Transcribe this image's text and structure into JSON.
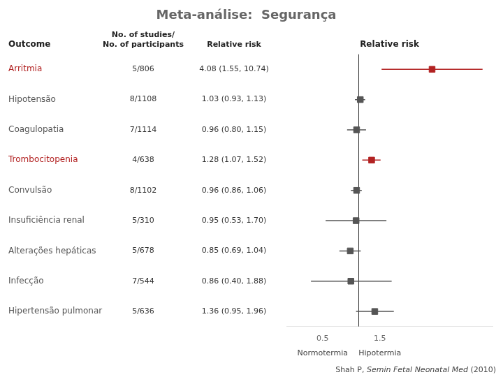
{
  "chart_data": {
    "type": "forest",
    "title": "Meta-análise:  Segurança",
    "category_label": "Outcome",
    "categories": [
      "Arritmia",
      "Hipotensão",
      "Coagulopatia",
      "Trombocitopenia",
      "Convulsão",
      "Insuficiência renal",
      "Alterações hepáticas",
      "Infecção",
      "Hipertensão pulmonar"
    ],
    "colors": [
      "#b22222",
      "#555555",
      "#555555",
      "#b22222",
      "#555555",
      "#555555",
      "#555555",
      "#555555",
      "#555555"
    ],
    "columns": [
      {
        "header": "No. of studies/\nNo. of participants",
        "values": [
          "5/806",
          "8/1108",
          "7/1114",
          "4/638",
          "8/1102",
          "5/310",
          "5/678",
          "7/544",
          "5/636"
        ]
      },
      {
        "header": "Relative risk",
        "values": [
          "4.08 (1.55, 10.74)",
          "1.03 (0.93, 1.13)",
          "0.96 (0.80, 1.15)",
          "1.28 (1.07, 1.52)",
          "0.96 (0.86, 1.06)",
          "0.95 (0.53, 1.70)",
          "0.85 (0.69, 1.04)",
          "0.86 (0.40, 1.88)",
          "1.36 (0.95, 1.96)"
        ]
      }
    ],
    "xlabel": "Relative risk",
    "values": [
      4.08,
      1.03,
      0.96,
      1.28,
      0.96,
      0.95,
      0.85,
      0.86,
      1.36
    ],
    "ci_low": [
      1.55,
      0.93,
      0.8,
      1.07,
      0.86,
      0.53,
      0.69,
      0.4,
      0.95
    ],
    "ci_high": [
      10.74,
      1.13,
      1.15,
      1.52,
      1.06,
      1.7,
      1.04,
      1.88,
      1.96
    ],
    "reference_line": 1,
    "log": "x",
    "xlim": [
      0.25,
      13
    ],
    "xticks": [
      0.5,
      1.5
    ],
    "grid": false,
    "annotations": [
      {
        "text": "Normotermia",
        "x": 0.5
      },
      {
        "text": "Hipotermia",
        "x": 1.5
      }
    ],
    "footnote": [
      "Shah P, ",
      "Semin Fetal Neonatal Med",
      " (2010)"
    ]
  }
}
